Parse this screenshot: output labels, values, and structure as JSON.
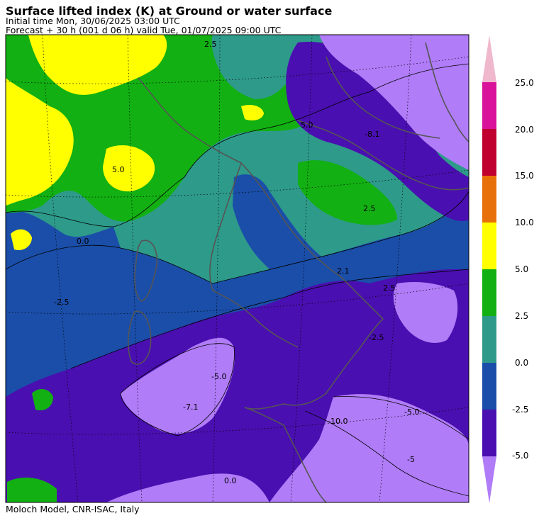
{
  "header": {
    "title": "Surface lifted index (K) at Ground or water surface",
    "initial_time": "Initial time  Mon, 30/06/2025  03:00 UTC",
    "forecast": "Forecast  +  30 h  (001 d 06 h)  valid Tue, 01/07/2025 09:00 UTC"
  },
  "footer": {
    "credit": "Moloch Model, CNR-ISAC, Italy"
  },
  "colorbar": {
    "labels": [
      "25.0",
      "20.0",
      "15.0",
      "10.0",
      "5.0",
      "2.5",
      "0.0",
      "-2.5",
      "-5.0"
    ],
    "colors": [
      "#f0b8cc",
      "#d8139a",
      "#c0002e",
      "#e8700a",
      "#ffff00",
      "#12b012",
      "#2e9a8a",
      "#1a4ea8",
      "#4a0fb0",
      "#b07cf8"
    ]
  },
  "map": {
    "contour_labels": [
      "-2.5",
      "0.0",
      "-7.1",
      "-5.0",
      "-10.0",
      "5.0",
      "2.5",
      "-8.1",
      "2.1",
      "-2.5",
      "-5.0",
      "2.5",
      "-5",
      "0.0",
      "5.0",
      "2.5"
    ],
    "colors": {
      "yellow": "#ffff00",
      "green": "#12b012",
      "teal": "#2e9a8a",
      "blue": "#1a4ea8",
      "purple": "#4a0fb0",
      "lavender": "#b07cf8",
      "border": "#555555"
    }
  }
}
